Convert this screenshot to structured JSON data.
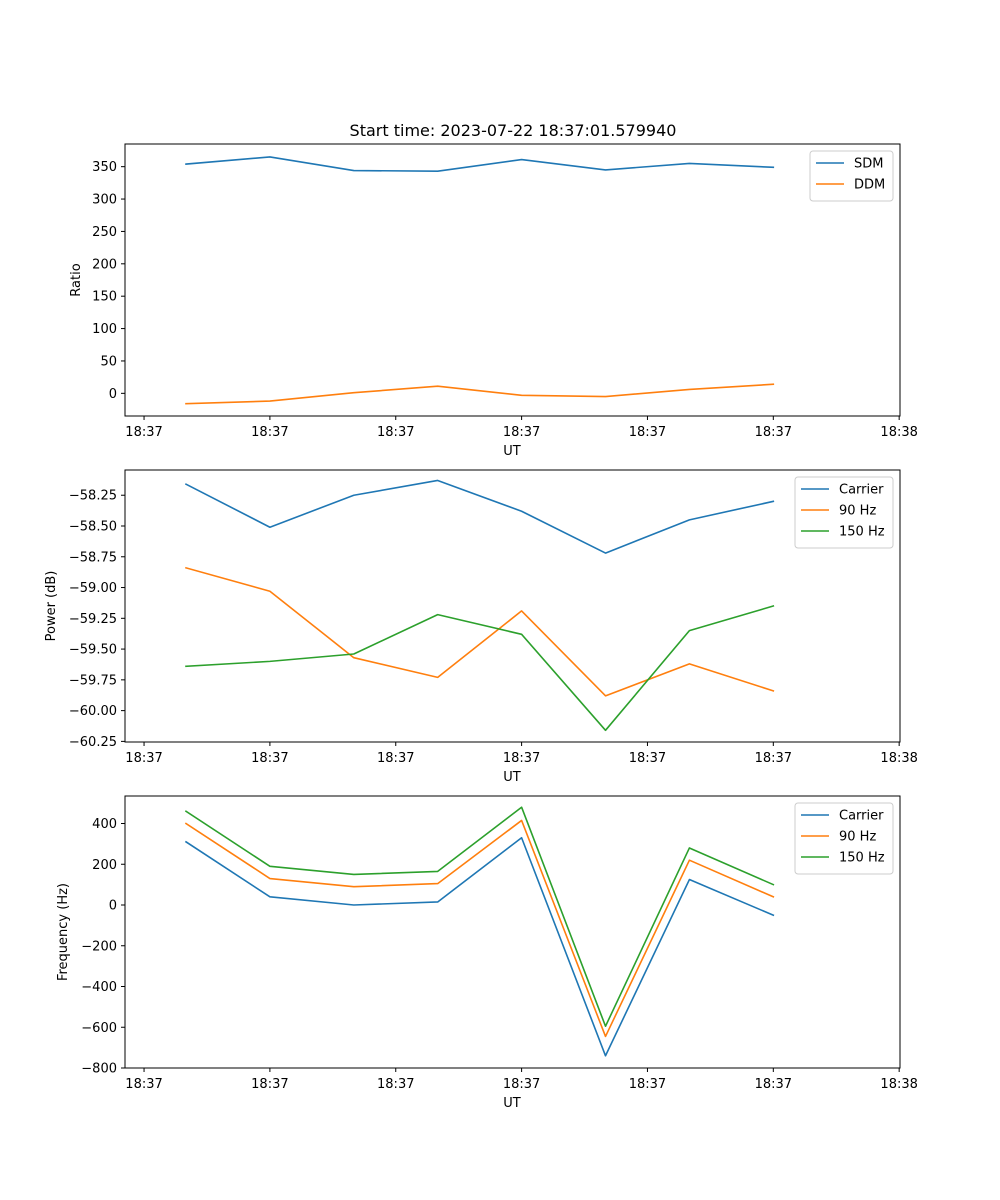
{
  "chart_data": [
    {
      "type": "line",
      "title": "Start time: 2023-07-22 18:37:01.579940",
      "xlabel": "UT",
      "ylabel": "Ratio",
      "x": [
        1,
        2,
        3,
        4,
        5,
        6,
        7,
        8
      ],
      "xticks": [
        0.5,
        2,
        3.5,
        5,
        6.5,
        8,
        9.5
      ],
      "xtick_labels": [
        "18:37",
        "18:37",
        "18:37",
        "18:37",
        "18:37",
        "18:37",
        "18:38"
      ],
      "xlim": [
        0.273,
        9.51
      ],
      "ylim": [
        -35,
        385
      ],
      "yticks": [
        0,
        50,
        100,
        150,
        200,
        250,
        300,
        350
      ],
      "ytick_labels": [
        "0",
        "50",
        "100",
        "150",
        "200",
        "250",
        "300",
        "350"
      ],
      "legend": "top-right",
      "series": [
        {
          "name": "SDM",
          "color": "#1f77b4",
          "values": [
            354,
            365,
            344,
            343,
            361,
            345,
            355,
            349
          ]
        },
        {
          "name": "DDM",
          "color": "#ff7f0e",
          "values": [
            -16,
            -12,
            1,
            11,
            -3,
            -5,
            6,
            14
          ]
        }
      ]
    },
    {
      "type": "line",
      "title": "",
      "xlabel": "UT",
      "ylabel": "Power (dB)",
      "x": [
        1,
        2,
        3,
        4,
        5,
        6,
        7,
        8
      ],
      "xticks": [
        0.5,
        2,
        3.5,
        5,
        6.5,
        8,
        9.5
      ],
      "xtick_labels": [
        "18:37",
        "18:37",
        "18:37",
        "18:37",
        "18:37",
        "18:37",
        "18:38"
      ],
      "xlim": [
        0.273,
        9.51
      ],
      "ylim": [
        -60.255,
        -58.045
      ],
      "yticks": [
        -60.25,
        -60.0,
        -59.75,
        -59.5,
        -59.25,
        -59.0,
        -58.75,
        -58.5,
        -58.25
      ],
      "ytick_labels": [
        "−60.25",
        "−60.00",
        "−59.75",
        "−59.50",
        "−59.25",
        "−59.00",
        "−58.75",
        "−58.50",
        "−58.25"
      ],
      "legend": "top-right",
      "series": [
        {
          "name": "Carrier",
          "color": "#1f77b4",
          "values": [
            -58.16,
            -58.51,
            -58.25,
            -58.13,
            -58.38,
            -58.72,
            -58.45,
            -58.3
          ]
        },
        {
          "name": "90 Hz",
          "color": "#ff7f0e",
          "values": [
            -58.84,
            -59.03,
            -59.57,
            -59.73,
            -59.19,
            -59.88,
            -59.62,
            -59.84
          ]
        },
        {
          "name": "150 Hz",
          "color": "#2ca02c",
          "values": [
            -59.64,
            -59.6,
            -59.54,
            -59.22,
            -59.38,
            -60.16,
            -59.35,
            -59.15
          ]
        }
      ]
    },
    {
      "type": "line",
      "title": "",
      "xlabel": "UT",
      "ylabel": "Frequency (Hz)",
      "x": [
        1,
        2,
        3,
        4,
        5,
        6,
        7,
        8
      ],
      "xticks": [
        0.5,
        2,
        3.5,
        5,
        6.5,
        8,
        9.5
      ],
      "xtick_labels": [
        "18:37",
        "18:37",
        "18:37",
        "18:37",
        "18:37",
        "18:37",
        "18:38"
      ],
      "xlim": [
        0.273,
        9.51
      ],
      "ylim": [
        -800,
        535
      ],
      "yticks": [
        -800,
        -600,
        -400,
        -200,
        0,
        200,
        400
      ],
      "ytick_labels": [
        "−800",
        "−600",
        "−400",
        "−200",
        "0",
        "200",
        "400"
      ],
      "legend": "top-right",
      "series": [
        {
          "name": "Carrier",
          "color": "#1f77b4",
          "values": [
            310,
            40,
            0,
            15,
            330,
            -740,
            125,
            -50
          ]
        },
        {
          "name": "90 Hz",
          "color": "#ff7f0e",
          "values": [
            400,
            130,
            90,
            105,
            415,
            -645,
            220,
            40
          ]
        },
        {
          "name": "150 Hz",
          "color": "#2ca02c",
          "values": [
            460,
            190,
            150,
            165,
            480,
            -595,
            280,
            100
          ]
        }
      ]
    }
  ]
}
